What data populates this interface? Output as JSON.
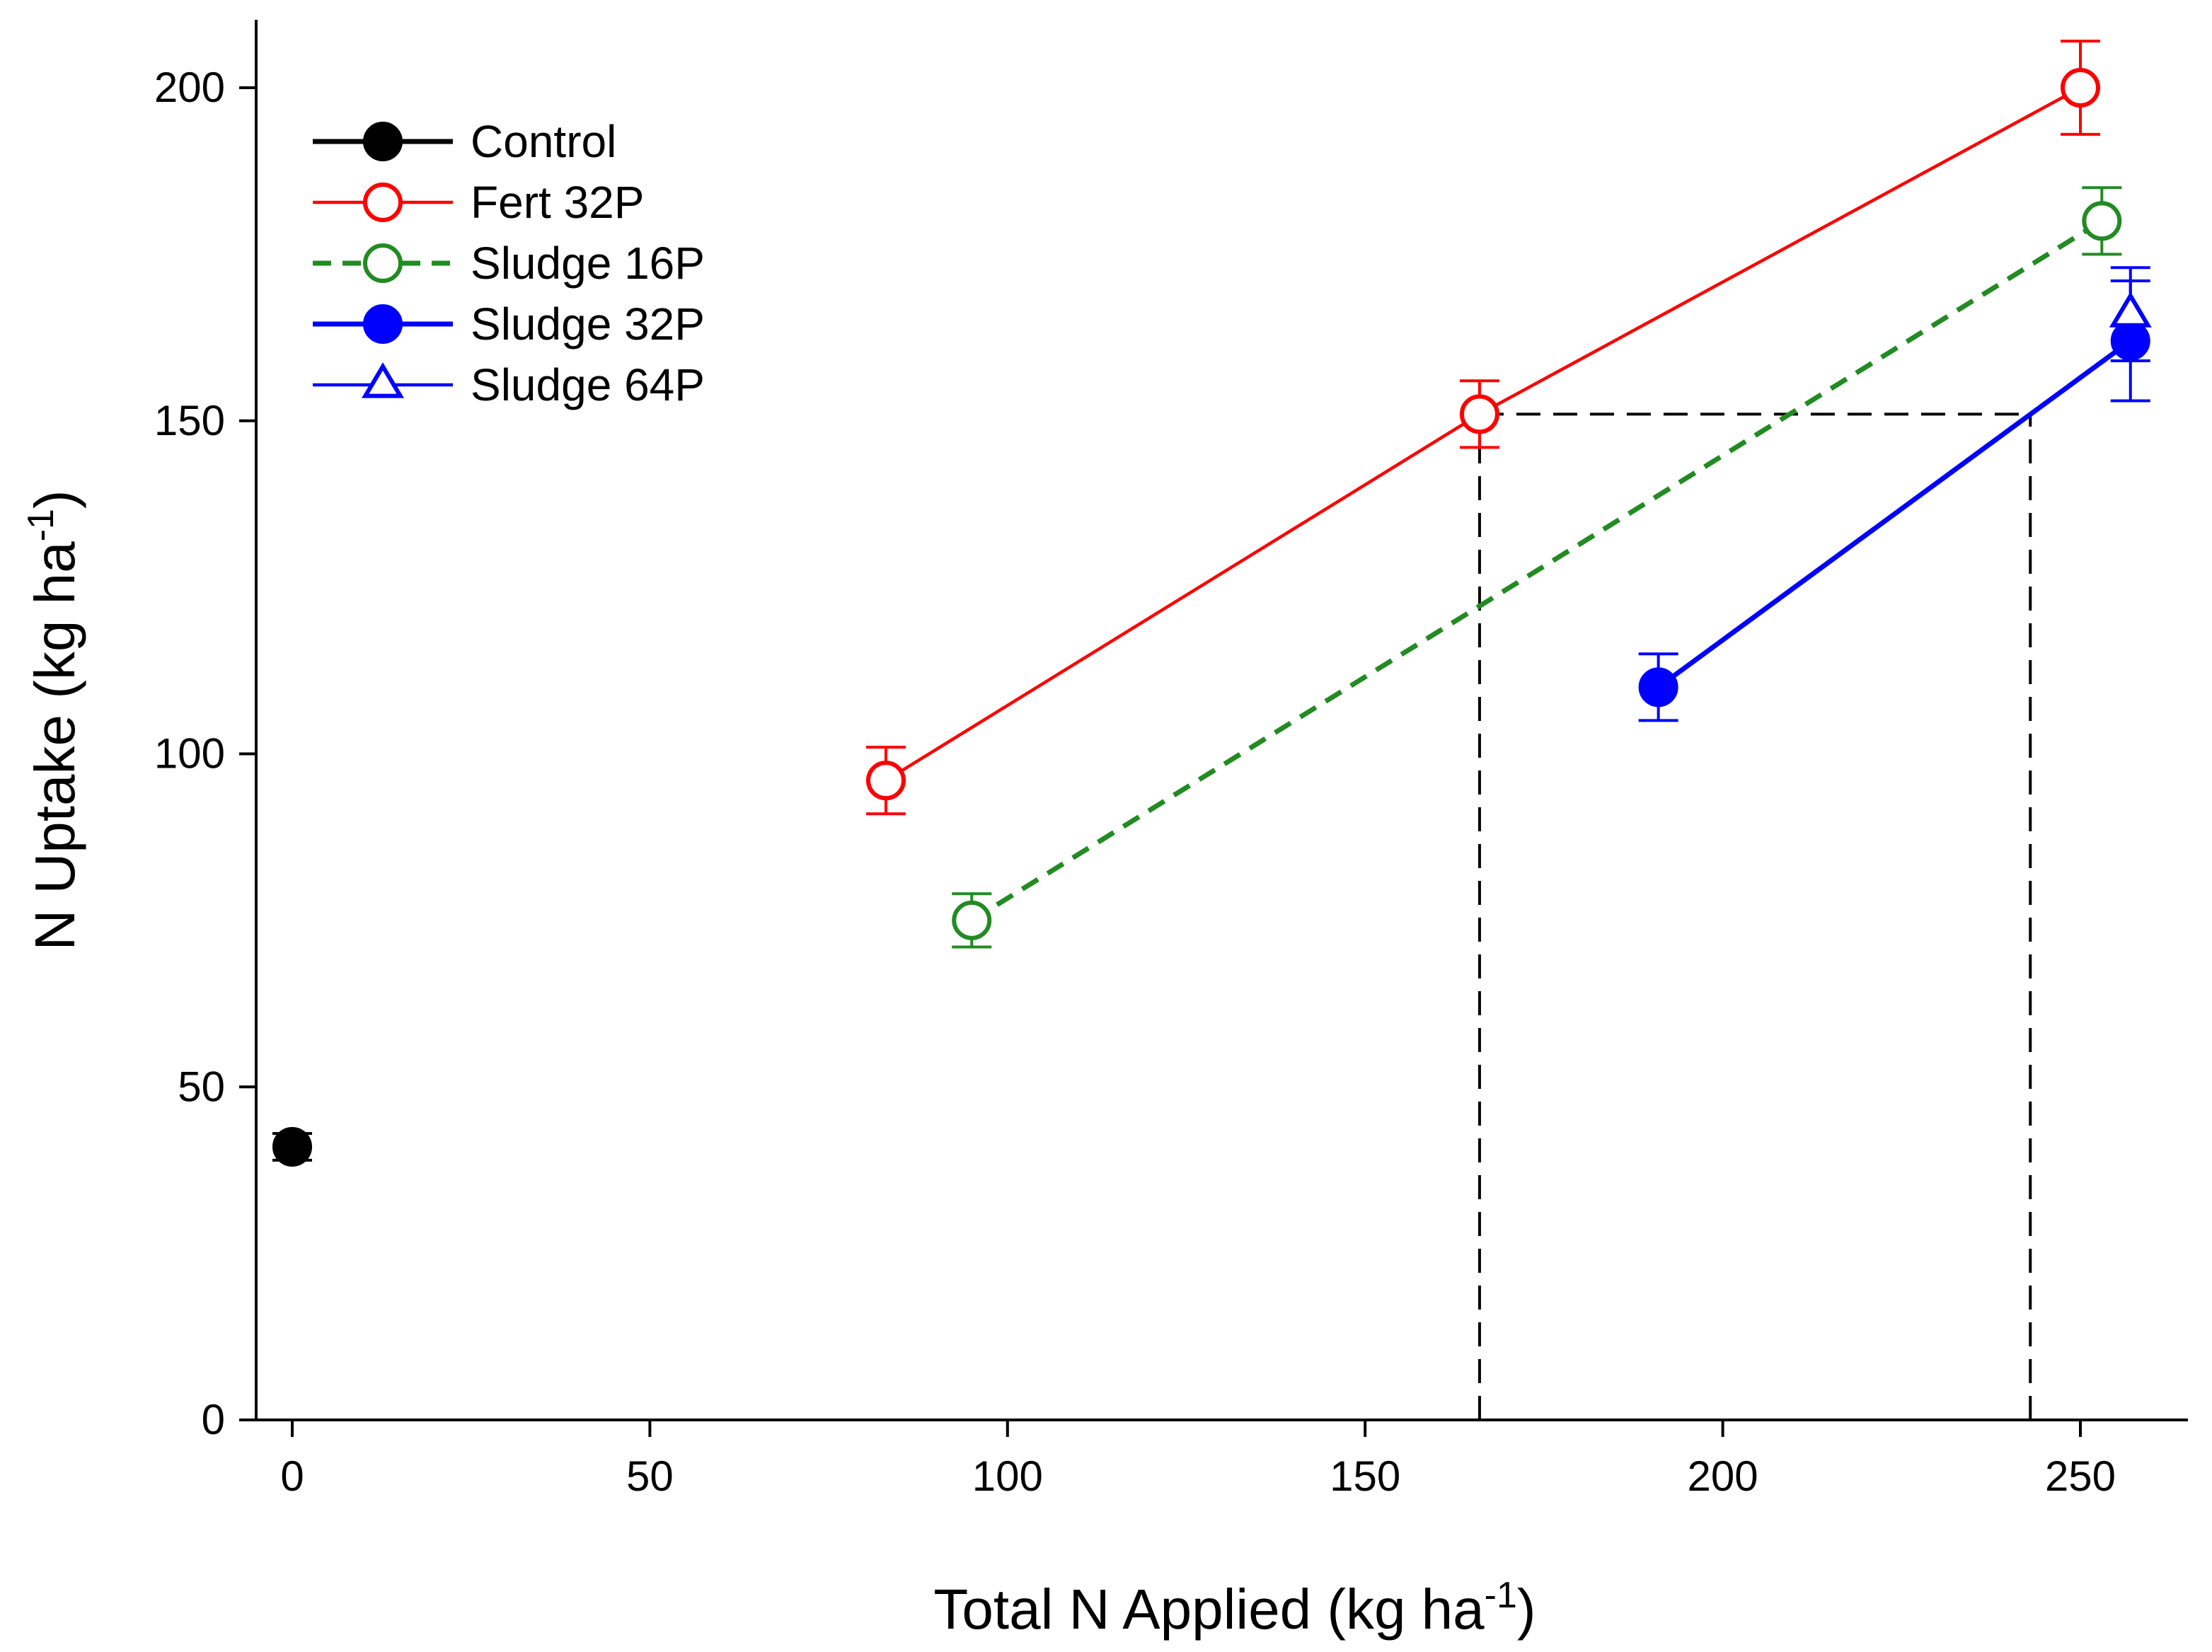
{
  "chart_data": {
    "type": "line",
    "title": "",
    "xlabel": {
      "main": "Total N Applied (kg ha",
      "sup": "-1",
      "close": ")"
    },
    "ylabel": {
      "main": "N Uptake (kg ha",
      "sup": "-1",
      "close": ")"
    },
    "xlim": [
      -5,
      265
    ],
    "ylim": [
      0,
      210
    ],
    "xticks": [
      0,
      50,
      100,
      150,
      200,
      250
    ],
    "yticks": [
      0,
      50,
      100,
      150,
      200
    ],
    "grid": false,
    "legend_position": "top-left",
    "series": [
      {
        "name": "Control",
        "color": "#000000",
        "marker": "circle",
        "filled": true,
        "line": "solid",
        "line_weight": "heavy",
        "points": [
          {
            "x": 0,
            "y": 41,
            "err": 2
          }
        ]
      },
      {
        "name": "Fert 32P",
        "color": "#ff0000",
        "marker": "circle",
        "filled": false,
        "line": "solid",
        "line_weight": "normal",
        "points": [
          {
            "x": 83,
            "y": 96,
            "err": 5
          },
          {
            "x": 166,
            "y": 151,
            "err": 5
          },
          {
            "x": 250,
            "y": 200,
            "err": 7
          }
        ]
      },
      {
        "name": "Sludge 16P",
        "color": "#228b22",
        "marker": "circle",
        "filled": false,
        "line": "dashed",
        "line_weight": "heavy",
        "points": [
          {
            "x": 95,
            "y": 75,
            "err": 4
          },
          {
            "x": 253,
            "y": 180,
            "err": 5
          }
        ]
      },
      {
        "name": "Sludge 32P",
        "color": "#0000ff",
        "marker": "circle",
        "filled": true,
        "line": "solid",
        "line_weight": "heavy",
        "points": [
          {
            "x": 191,
            "y": 110,
            "err": 5
          },
          {
            "x": 257,
            "y": 162,
            "err": 9
          }
        ]
      },
      {
        "name": "Sludge 64P",
        "color": "#0000ff",
        "marker": "triangle",
        "filled": false,
        "line": "solid",
        "line_weight": "normal",
        "points": [
          {
            "x": 257,
            "y": 166,
            "err": 7
          }
        ]
      }
    ],
    "reference_lines": [
      {
        "name": "ref-vertical-fert",
        "x1": 166,
        "y1": 0,
        "x2": 166,
        "y2": 151
      },
      {
        "name": "ref-horizontal",
        "x1": 166,
        "y1": 151,
        "x2": 243,
        "y2": 151
      },
      {
        "name": "ref-vertical-sludge",
        "x1": 243,
        "y1": 0,
        "x2": 243,
        "y2": 151
      }
    ]
  }
}
